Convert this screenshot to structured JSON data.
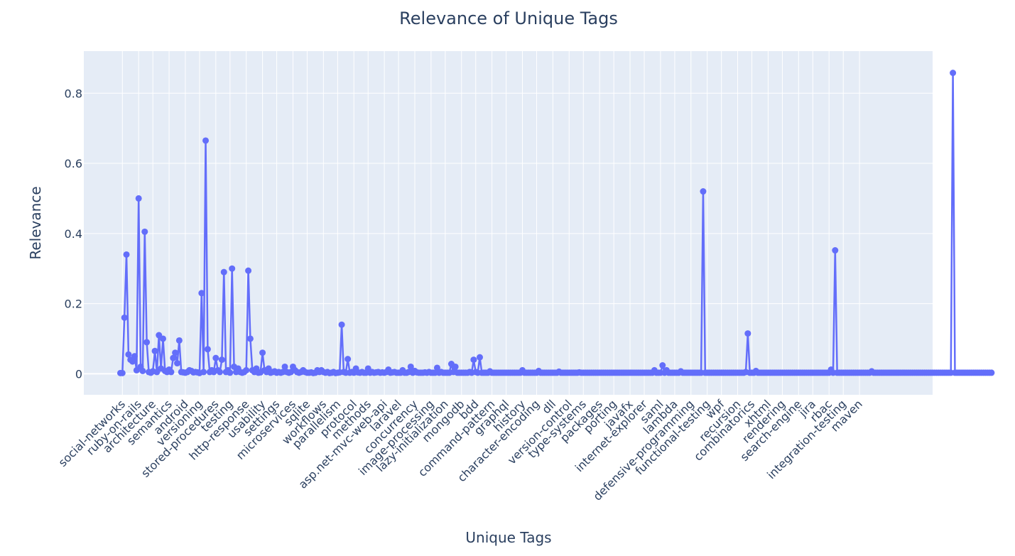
{
  "chart_data": {
    "type": "line",
    "title": "Relevance of Unique Tags",
    "xlabel": "Unique Tags",
    "ylabel": "Relevance",
    "ylim": [
      -0.06,
      0.92
    ],
    "yticks": [
      0,
      0.2,
      0.4,
      0.6,
      0.8
    ],
    "ytick_labels": [
      "0",
      "0.2",
      "0.4",
      "0.6",
      "0.8"
    ],
    "grid": true,
    "line_color": "#636efa",
    "plot_bg": "#e5ecf6",
    "x_tick_labels": [
      {
        "label": "social-networks",
        "index": 1
      },
      {
        "label": "ruby-on-rails",
        "index": 9
      },
      {
        "label": "architecture",
        "index": 16
      },
      {
        "label": "semantics",
        "index": 24
      },
      {
        "label": "android",
        "index": 32
      },
      {
        "label": "versioning",
        "index": 39
      },
      {
        "label": "stored-procedures",
        "index": 47
      },
      {
        "label": "testing",
        "index": 54
      },
      {
        "label": "http-response",
        "index": 62
      },
      {
        "label": "usability",
        "index": 70
      },
      {
        "label": "settings",
        "index": 77
      },
      {
        "label": "microservices",
        "index": 85
      },
      {
        "label": "sqlite",
        "index": 92
      },
      {
        "label": "workflows",
        "index": 100
      },
      {
        "label": "parallelism",
        "index": 107
      },
      {
        "label": "protocol",
        "index": 115
      },
      {
        "label": "methods",
        "index": 122
      },
      {
        "label": "asp.net-mvc-web-api",
        "index": 130
      },
      {
        "label": "laravel",
        "index": 137
      },
      {
        "label": "concurrency",
        "index": 145
      },
      {
        "label": "image-processing",
        "index": 153
      },
      {
        "label": "lazy-initialization",
        "index": 160
      },
      {
        "label": "mongodb",
        "index": 168
      },
      {
        "label": "bdd",
        "index": 175
      },
      {
        "label": "command-pattern",
        "index": 183
      },
      {
        "label": "graphql",
        "index": 190
      },
      {
        "label": "history",
        "index": 198
      },
      {
        "label": "character-encoding",
        "index": 205
      },
      {
        "label": "dll",
        "index": 213
      },
      {
        "label": "version-control",
        "index": 221
      },
      {
        "label": "type-systems",
        "index": 228
      },
      {
        "label": "packages",
        "index": 236
      },
      {
        "label": "porting",
        "index": 243
      },
      {
        "label": "javafx",
        "index": 251
      },
      {
        "label": "internet-explorer",
        "index": 258
      },
      {
        "label": "saml",
        "index": 266
      },
      {
        "label": "lambda",
        "index": 273
      },
      {
        "label": "defensive-programming",
        "index": 281
      },
      {
        "label": "functional-testing",
        "index": 289
      },
      {
        "label": "wpf",
        "index": 296
      },
      {
        "label": "recursion",
        "index": 304
      },
      {
        "label": "combinatorics",
        "index": 311
      },
      {
        "label": "xhtml",
        "index": 319
      },
      {
        "label": "rendering",
        "index": 326
      },
      {
        "label": "search-engine",
        "index": 334
      },
      {
        "label": "jira",
        "index": 341
      },
      {
        "label": "rbac",
        "index": 349
      },
      {
        "label": "integration-testing",
        "index": 356
      },
      {
        "label": "maven",
        "index": 364
      }
    ],
    "x_range": [
      -18,
      400
    ],
    "series": [
      {
        "values": [
          0.002,
          0.002,
          0.16,
          0.34,
          0.055,
          0.04,
          0.035,
          0.05,
          0.01,
          0.5,
          0.02,
          0.008,
          0.405,
          0.09,
          0.005,
          0.003,
          0.007,
          0.065,
          0.005,
          0.11,
          0.015,
          0.1,
          0.008,
          0.005,
          0.012,
          0.005,
          0.045,
          0.06,
          0.03,
          0.095,
          0.005,
          0.004,
          0.003,
          0.005,
          0.01,
          0.008,
          0.004,
          0.005,
          0.004,
          0.002,
          0.23,
          0.005,
          0.665,
          0.07,
          0.005,
          0.01,
          0.005,
          0.045,
          0.01,
          0.005,
          0.04,
          0.29,
          0.005,
          0.01,
          0.003,
          0.3,
          0.02,
          0.005,
          0.015,
          0.005,
          0.003,
          0.005,
          0.01,
          0.294,
          0.1,
          0.01,
          0.005,
          0.015,
          0.003,
          0.004,
          0.06,
          0.01,
          0.005,
          0.015,
          0.003,
          0.005,
          0.007,
          0.003,
          0.005,
          0.003,
          0.005,
          0.02,
          0.005,
          0.003,
          0.005,
          0.02,
          0.01,
          0.005,
          0.003,
          0.005,
          0.01,
          0.005,
          0.003,
          0.003,
          0.004,
          0.002,
          0.003,
          0.01,
          0.005,
          0.01,
          0.005,
          0.003,
          0.005,
          0.002,
          0.003,
          0.005,
          0.002,
          0.003,
          0.004,
          0.14,
          0.005,
          0.003,
          0.042,
          0.003,
          0.005,
          0.003,
          0.015,
          0.004,
          0.003,
          0.005,
          0.003,
          0.003,
          0.015,
          0.003,
          0.005,
          0.003,
          0.004,
          0.005,
          0.003,
          0.004,
          0.003,
          0.005,
          0.012,
          0.003,
          0.004,
          0.005,
          0.003,
          0.003,
          0.003,
          0.01,
          0.003,
          0.003,
          0.005,
          0.02,
          0.003,
          0.008,
          0.004,
          0.003,
          0.003,
          0.003,
          0.004,
          0.003,
          0.005,
          0.003,
          0.003,
          0.003,
          0.017,
          0.003,
          0.005,
          0.003,
          0.003,
          0.003,
          0.003,
          0.028,
          0.005,
          0.02,
          0.003,
          0.003,
          0.003,
          0.003,
          0.003,
          0.003,
          0.005,
          0.003,
          0.04,
          0.005,
          0.003,
          0.047,
          0.003,
          0.003,
          0.003,
          0.003,
          0.007,
          0.003,
          0.003,
          0.003,
          0.003,
          0.003,
          0.003,
          0.003,
          0.003,
          0.003,
          0.003,
          0.003,
          0.003,
          0.003,
          0.003,
          0.003,
          0.01,
          0.003,
          0.003,
          0.003,
          0.003,
          0.003,
          0.003,
          0.003,
          0.008,
          0.003,
          0.003,
          0.003,
          0.003,
          0.003,
          0.003,
          0.003,
          0.003,
          0.003,
          0.006,
          0.003,
          0.003,
          0.003,
          0.003,
          0.003,
          0.003,
          0.003,
          0.003,
          0.003,
          0.004,
          0.003,
          0.003,
          0.003,
          0.003,
          0.003,
          0.003,
          0.003,
          0.003,
          0.003,
          0.003,
          0.003,
          0.003,
          0.003,
          0.003,
          0.003,
          0.003,
          0.003,
          0.003,
          0.003,
          0.003,
          0.003,
          0.003,
          0.003,
          0.003,
          0.003,
          0.003,
          0.003,
          0.003,
          0.003,
          0.003,
          0.003,
          0.003,
          0.003,
          0.003,
          0.003,
          0.003,
          0.01,
          0.003,
          0.003,
          0.003,
          0.024,
          0.003,
          0.01,
          0.003,
          0.003,
          0.003,
          0.003,
          0.003,
          0.003,
          0.007,
          0.003,
          0.003,
          0.003,
          0.003,
          0.003,
          0.003,
          0.003,
          0.003,
          0.003,
          0.003,
          0.52,
          0.003,
          0.003,
          0.003,
          0.003,
          0.003,
          0.003,
          0.003,
          0.003,
          0.003,
          0.003,
          0.003,
          0.003,
          0.003,
          0.003,
          0.003,
          0.003,
          0.003,
          0.003,
          0.003,
          0.003,
          0.005,
          0.115,
          0.003,
          0.003,
          0.003,
          0.008,
          0.003,
          0.003,
          0.003,
          0.003,
          0.003,
          0.003,
          0.003,
          0.003,
          0.003,
          0.003,
          0.003,
          0.003,
          0.003,
          0.003,
          0.003,
          0.003,
          0.003,
          0.003,
          0.003,
          0.003,
          0.003,
          0.003,
          0.003,
          0.003,
          0.003,
          0.003,
          0.003,
          0.003,
          0.003,
          0.003,
          0.003,
          0.003,
          0.003,
          0.003,
          0.003,
          0.003,
          0.012,
          0.003,
          0.352,
          0.003,
          0.003,
          0.003,
          0.003,
          0.003,
          0.003,
          0.003,
          0.003,
          0.003,
          0.003,
          0.003,
          0.003,
          0.003,
          0.003,
          0.003,
          0.003,
          0.003,
          0.007,
          0.003,
          0.003,
          0.003,
          0.003,
          0.003,
          0.003,
          0.003,
          0.003,
          0.003,
          0.003,
          0.003,
          0.003,
          0.003,
          0.003,
          0.003,
          0.003,
          0.003,
          0.003,
          0.003,
          0.003,
          0.003,
          0.003,
          0.003,
          0.003,
          0.003,
          0.003,
          0.003,
          0.003,
          0.003,
          0.003,
          0.003,
          0.003,
          0.003,
          0.003,
          0.003,
          0.003,
          0.003,
          0.003,
          0.003,
          0.858,
          0.003,
          0.003,
          0.003,
          0.003,
          0.003,
          0.003,
          0.003,
          0.003,
          0.003,
          0.003,
          0.003,
          0.003,
          0.003,
          0.003,
          0.003,
          0.003,
          0.003,
          0.003,
          0.003
        ]
      }
    ]
  }
}
